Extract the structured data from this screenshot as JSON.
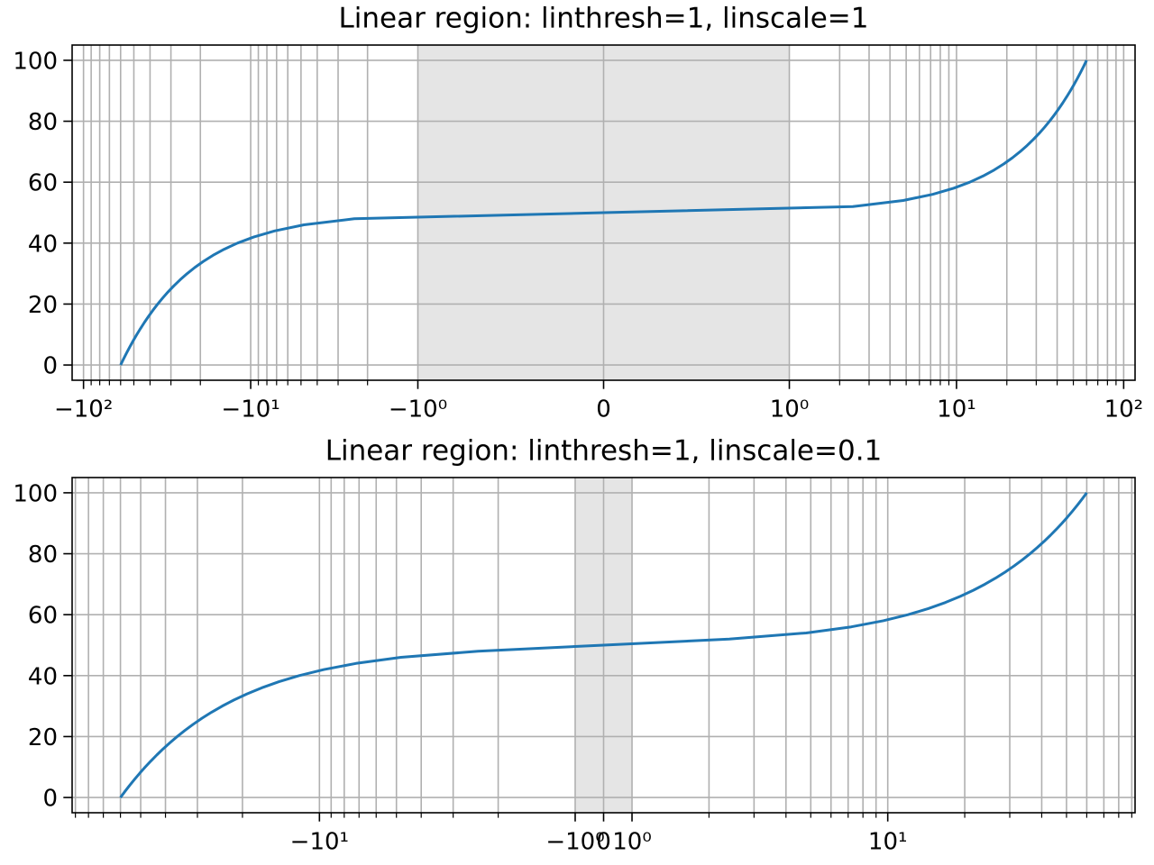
{
  "chart_data": [
    {
      "type": "line",
      "title": "Linear region: linthresh=1, linscale=1",
      "xscale": "symlog",
      "base": 10,
      "linthresh": 1,
      "linscale": 1,
      "x": [
        -60,
        -57.6,
        -55.2,
        -52.8,
        -50.4,
        -48,
        -45.6,
        -43.2,
        -40.8,
        -38.4,
        -36,
        -33.6,
        -31.2,
        -28.8,
        -26.4,
        -24,
        -21.6,
        -19.2,
        -16.8,
        -14.4,
        -12,
        -9.6,
        -7.2,
        -4.8,
        -2.4,
        0,
        2.4,
        4.8,
        7.2,
        9.6,
        12,
        14.4,
        16.8,
        19.2,
        21.6,
        24,
        26.4,
        28.8,
        31.2,
        33.6,
        36,
        38.4,
        40.8,
        43.2,
        45.6,
        48,
        50.4,
        52.8,
        55.2,
        57.6,
        60
      ],
      "series": [
        {
          "color": "#1f77b4",
          "values": [
            0,
            2,
            4,
            6,
            8,
            10,
            12,
            14,
            16,
            18,
            20,
            22,
            24,
            26,
            28,
            30,
            32,
            34,
            36,
            38,
            40,
            42,
            44,
            46,
            48,
            50,
            52,
            54,
            56,
            58,
            60,
            62,
            64,
            66,
            68,
            70,
            72,
            74,
            76,
            78,
            80,
            82,
            84,
            86,
            88,
            90,
            92,
            94,
            96,
            98,
            100
          ]
        }
      ],
      "xlim": [
        -117,
        117
      ],
      "xticks": [
        {
          "value": -100,
          "label": "−10²"
        },
        {
          "value": -10,
          "label": "−10¹"
        },
        {
          "value": -1,
          "label": "−10⁰"
        },
        0,
        {
          "value": 1,
          "label": "10⁰"
        },
        {
          "value": 10,
          "label": "10¹"
        },
        {
          "value": 100,
          "label": "10²"
        }
      ],
      "xminor": [
        -90,
        -80,
        -70,
        -60,
        -50,
        -40,
        -30,
        -20,
        -9,
        -8,
        -7,
        -6,
        -5,
        -4,
        -3,
        -2,
        2,
        3,
        4,
        5,
        6,
        7,
        8,
        9,
        20,
        30,
        40,
        50,
        60,
        70,
        80,
        90
      ],
      "ylim": [
        -5,
        105
      ],
      "yticks": [
        0,
        20,
        40,
        60,
        80,
        100
      ],
      "grid": true,
      "span": [
        -1,
        1
      ],
      "span_color": "#e5e5e5"
    },
    {
      "type": "line",
      "title": "Linear region: linthresh=1, linscale=0.1",
      "xscale": "symlog",
      "base": 10,
      "linthresh": 1,
      "linscale": 0.1,
      "x": [
        -60,
        -57.6,
        -55.2,
        -52.8,
        -50.4,
        -48,
        -45.6,
        -43.2,
        -40.8,
        -38.4,
        -36,
        -33.6,
        -31.2,
        -28.8,
        -26.4,
        -24,
        -21.6,
        -19.2,
        -16.8,
        -14.4,
        -12,
        -9.6,
        -7.2,
        -4.8,
        -2.4,
        0,
        2.4,
        4.8,
        7.2,
        9.6,
        12,
        14.4,
        16.8,
        19.2,
        21.6,
        24,
        26.4,
        28.8,
        31.2,
        33.6,
        36,
        38.4,
        40.8,
        43.2,
        45.6,
        48,
        50.4,
        52.8,
        55.2,
        57.6,
        60
      ],
      "series": [
        {
          "color": "#1f77b4",
          "values": [
            0,
            2,
            4,
            6,
            8,
            10,
            12,
            14,
            16,
            18,
            20,
            22,
            24,
            26,
            28,
            30,
            32,
            34,
            36,
            38,
            40,
            42,
            44,
            46,
            48,
            50,
            52,
            54,
            56,
            58,
            60,
            62,
            64,
            66,
            68,
            70,
            72,
            74,
            76,
            78,
            80,
            82,
            84,
            86,
            88,
            90,
            92,
            94,
            96,
            98,
            100
          ]
        }
      ],
      "xlim": [
        -92.7,
        92.7
      ],
      "xticks": [
        {
          "value": -10,
          "label": "−10¹"
        },
        {
          "value": -1,
          "label": "−10⁰"
        },
        0,
        {
          "value": 1,
          "label": "10⁰"
        },
        {
          "value": 10,
          "label": "10¹"
        }
      ],
      "xminor": [
        -90,
        -80,
        -70,
        -60,
        -50,
        -40,
        -30,
        -20,
        -9,
        -8,
        -7,
        -6,
        -5,
        -4,
        -3,
        -2,
        2,
        3,
        4,
        5,
        6,
        7,
        8,
        9,
        20,
        30,
        40,
        50,
        60,
        70,
        80,
        90
      ],
      "ylim": [
        -5,
        105
      ],
      "yticks": [
        0,
        20,
        40,
        60,
        80,
        100
      ],
      "grid": true,
      "span": [
        -1,
        1
      ],
      "span_color": "#e5e5e5"
    }
  ]
}
